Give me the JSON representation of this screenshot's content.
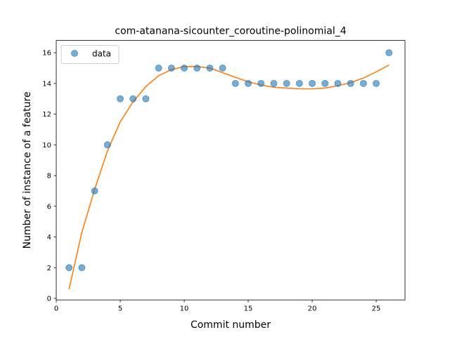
{
  "chart_data": {
    "type": "scatter",
    "title": "com-atanana-sicounter_coroutine-polinomial_4",
    "xlabel": "Commit number",
    "ylabel": "Number of instance of a feature",
    "xlim": [
      0,
      27.25
    ],
    "ylim": [
      -0.1,
      16.8
    ],
    "xticks": [
      0,
      5,
      10,
      15,
      20,
      25
    ],
    "yticks": [
      0,
      2,
      4,
      6,
      8,
      10,
      12,
      14,
      16
    ],
    "grid": false,
    "legend_position": "upper-left",
    "series": [
      {
        "name": "data",
        "kind": "scatter",
        "color": "#1f77b4",
        "x": [
          1,
          2,
          3,
          4,
          5,
          6,
          7,
          8,
          9,
          10,
          11,
          12,
          13,
          14,
          15,
          16,
          17,
          18,
          19,
          20,
          21,
          22,
          23,
          24,
          25,
          26
        ],
        "y": [
          2,
          2,
          7,
          10,
          13,
          13,
          13,
          15,
          15,
          15,
          15,
          15,
          15,
          14,
          14,
          14,
          14,
          14,
          14,
          14,
          14,
          14,
          14,
          14,
          14,
          16
        ]
      },
      {
        "kind": "line",
        "color": "#ff7f0e",
        "x": [
          1,
          2,
          3,
          4,
          5,
          6,
          7,
          8,
          9,
          10,
          11,
          12,
          13,
          14,
          15,
          16,
          17,
          18,
          19,
          20,
          21,
          22,
          23,
          24,
          25,
          26
        ],
        "y": [
          0.6,
          4.3,
          7.1,
          9.6,
          11.5,
          12.8,
          13.8,
          14.5,
          14.9,
          15.1,
          15.1,
          15.0,
          14.7,
          14.4,
          14.1,
          13.9,
          13.75,
          13.7,
          13.65,
          13.65,
          13.7,
          13.85,
          14.05,
          14.35,
          14.75,
          15.2
        ]
      }
    ]
  }
}
